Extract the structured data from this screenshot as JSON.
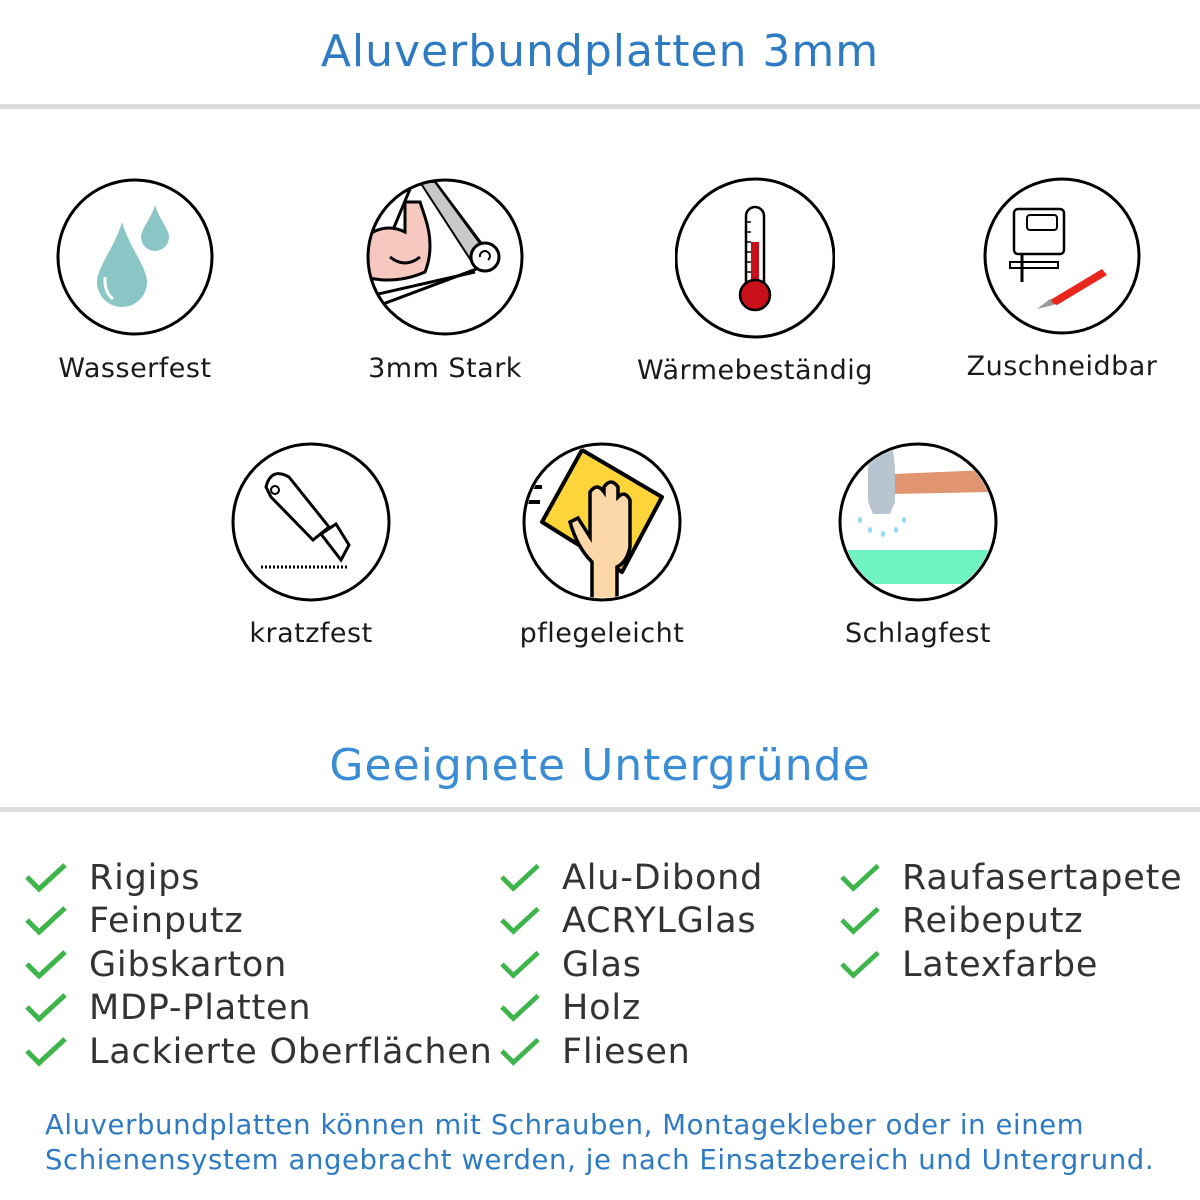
{
  "header": {
    "title": "Aluverbundplatten 3mm"
  },
  "features": [
    {
      "label": "Wasserfest",
      "icon": "water-drops-icon"
    },
    {
      "label": "3mm Stark",
      "icon": "flexed-arm-icon"
    },
    {
      "label": "Wärmebeständig",
      "icon": "thermometer-icon"
    },
    {
      "label": "Zuschneidbar",
      "icon": "jigsaw-knife-icon"
    },
    {
      "label": "kratzfest",
      "icon": "cutter-knife-icon"
    },
    {
      "label": "pflegeleicht",
      "icon": "cleaning-cloth-hand-icon"
    },
    {
      "label": "Schlagfest",
      "icon": "hammer-impact-icon"
    }
  ],
  "surfaces": {
    "title": "Geeignete Untergründe",
    "check_color": "#3db54a",
    "columns": [
      [
        "Rigips",
        "Feinputz",
        "Gibskarton",
        "MDP-Platten",
        "Lackierte Oberflächen"
      ],
      [
        "Alu-Dibond",
        "ACRYLGlas",
        "Glas",
        "Holz",
        "Fliesen"
      ],
      [
        "Raufasertapete",
        "Reibeputz",
        "Latexfarbe"
      ]
    ]
  },
  "footer": {
    "line1": "Aluverbundplatten können mit Schrauben, Montagekleber oder in einem",
    "line2": "Schienensystem angebracht werden, je nach Einsatzbereich und Untergrund."
  }
}
